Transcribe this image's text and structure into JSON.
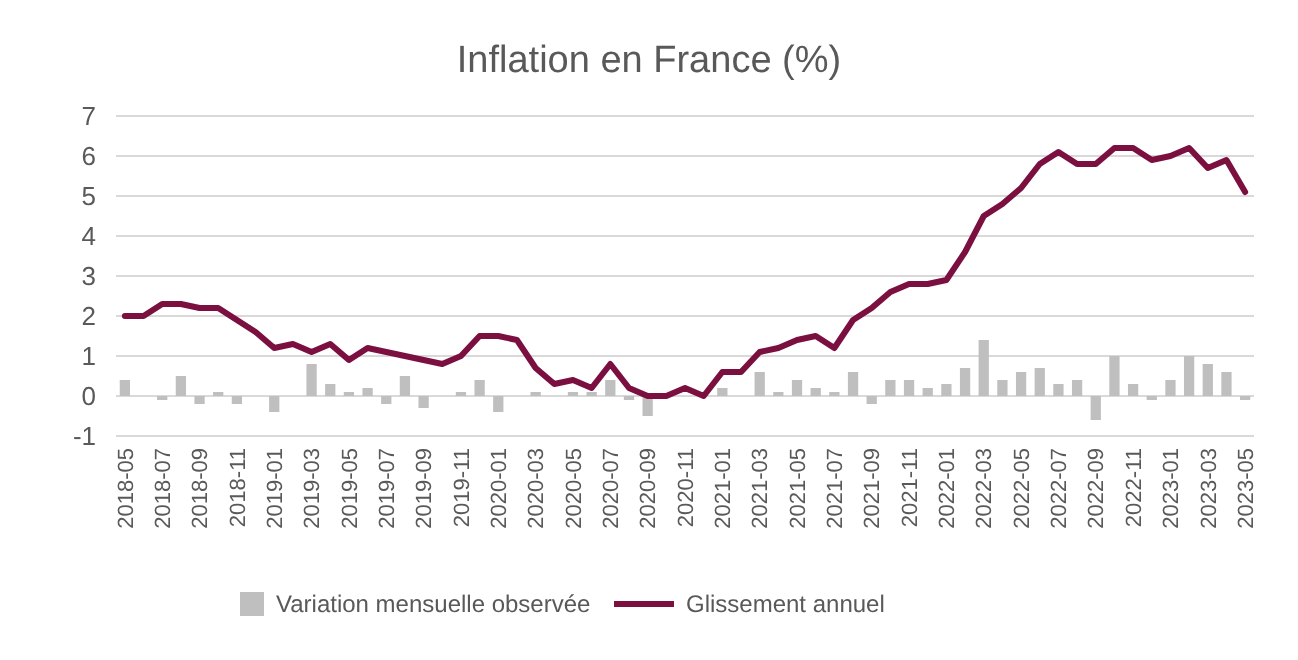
{
  "chart_data": {
    "type": "bar",
    "title": "Inflation en France (%)",
    "categories": [
      "2018-05",
      null,
      "2018-07",
      null,
      "2018-09",
      null,
      "2018-11",
      null,
      "2019-01",
      null,
      "2019-03",
      null,
      "2019-05",
      null,
      "2019-07",
      null,
      "2019-09",
      null,
      "2019-11",
      null,
      "2020-01",
      null,
      "2020-03",
      null,
      "2020-05",
      null,
      "2020-07",
      null,
      "2020-09",
      null,
      "2020-11",
      null,
      "2021-01",
      null,
      "2021-03",
      null,
      "2021-05",
      null,
      "2021-07",
      null,
      "2021-09",
      null,
      "2021-11",
      null,
      "2022-01",
      null,
      "2022-03",
      null,
      "2022-05",
      null,
      "2022-07",
      null,
      "2022-09",
      null,
      "2022-11",
      null,
      "2023-01",
      null,
      "2023-03",
      null,
      "2023-05"
    ],
    "series": [
      {
        "name": "Variation mensuelle observée",
        "color": "#bfbfbf",
        "values": [
          0.4,
          0.0,
          -0.1,
          0.5,
          -0.2,
          0.1,
          -0.2,
          0.0,
          -0.4,
          0.0,
          0.8,
          0.3,
          0.1,
          0.2,
          -0.2,
          0.5,
          -0.3,
          0.0,
          0.1,
          0.4,
          -0.4,
          0.0,
          0.1,
          0.0,
          0.1,
          0.1,
          0.4,
          -0.1,
          -0.5,
          0.0,
          null,
          null,
          0.2,
          0.0,
          0.6,
          0.1,
          0.4,
          0.2,
          0.1,
          0.6,
          -0.2,
          0.4,
          0.4,
          0.2,
          0.3,
          0.7,
          1.4,
          0.4,
          0.6,
          0.7,
          0.3,
          0.4,
          -0.6,
          1.0,
          0.3,
          -0.1,
          0.4,
          1.0,
          0.8,
          0.6,
          -0.1
        ]
      },
      {
        "name": "Glissement annuel",
        "type": "line",
        "color": "#7b1040",
        "values": [
          2.0,
          2.0,
          2.3,
          2.3,
          2.2,
          2.2,
          1.9,
          1.6,
          1.2,
          1.3,
          1.1,
          1.3,
          0.9,
          1.2,
          1.1,
          1.0,
          0.9,
          0.8,
          1.0,
          1.5,
          1.5,
          1.4,
          0.7,
          0.3,
          0.4,
          0.2,
          0.8,
          0.2,
          0.0,
          0.0,
          0.2,
          0.0,
          0.6,
          0.6,
          1.1,
          1.2,
          1.4,
          1.5,
          1.2,
          1.9,
          2.2,
          2.6,
          2.8,
          2.8,
          2.9,
          3.6,
          4.5,
          4.8,
          5.2,
          5.8,
          6.1,
          5.8,
          5.8,
          6.2,
          6.2,
          5.9,
          6.0,
          6.2,
          5.7,
          5.9,
          5.1
        ]
      }
    ],
    "ylim": [
      -1,
      7
    ],
    "yticks": [
      -1,
      0,
      1,
      2,
      3,
      4,
      5,
      6,
      7
    ],
    "grid": "y",
    "legend": "bottom"
  }
}
